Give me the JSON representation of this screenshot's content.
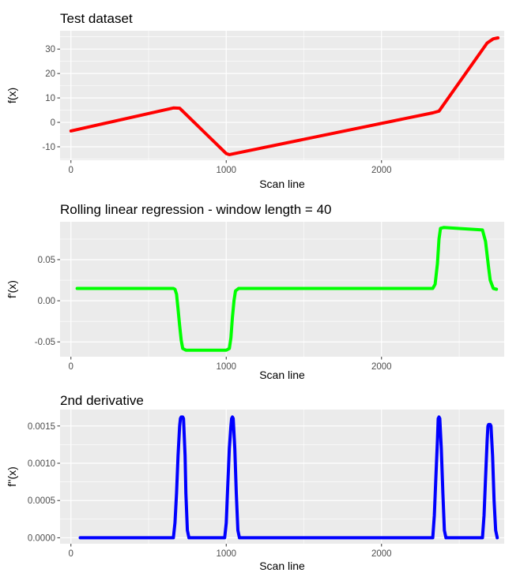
{
  "chart_data": [
    {
      "type": "line",
      "title": "Test dataset",
      "xlabel": "Scan line",
      "ylabel": "f(x)",
      "xlim": [
        -70,
        2790
      ],
      "ylim": [
        -15.5,
        37.5
      ],
      "xticks": [
        {
          "value": 0,
          "label": "0"
        },
        {
          "value": 1000,
          "label": "1000"
        },
        {
          "value": 2000,
          "label": "2000"
        }
      ],
      "yticks": [
        {
          "value": -10,
          "label": "-10"
        },
        {
          "value": 0,
          "label": "0"
        },
        {
          "value": 10,
          "label": "10"
        },
        {
          "value": 20,
          "label": "20"
        },
        {
          "value": 30,
          "label": "30"
        }
      ],
      "grid": true,
      "color": "#ff0000",
      "series": [
        {
          "x": [
            0,
            660,
            700,
            1000,
            1020,
            2330,
            2370,
            2680,
            2720,
            2750
          ],
          "values": [
            -3.5,
            5.9,
            5.8,
            -12.8,
            -13.2,
            3.9,
            4.6,
            32.5,
            34.2,
            34.6
          ]
        }
      ]
    },
    {
      "type": "line",
      "title": "Rolling linear regression - window length = 40",
      "xlabel": "Scan line",
      "ylabel": "f'(x)",
      "xlim": [
        -70,
        2790
      ],
      "ylim": [
        -0.068,
        0.096
      ],
      "xticks": [
        {
          "value": 0,
          "label": "0"
        },
        {
          "value": 1000,
          "label": "1000"
        },
        {
          "value": 2000,
          "label": "2000"
        }
      ],
      "yticks": [
        {
          "value": -0.05,
          "label": "-0.05"
        },
        {
          "value": 0,
          "label": "0.00"
        },
        {
          "value": 0.05,
          "label": "0.05"
        }
      ],
      "grid": true,
      "color": "#00ff00",
      "series": [
        {
          "x": [
            40,
            660,
            670,
            680,
            690,
            700,
            710,
            720,
            740,
            1000,
            1020,
            1030,
            1040,
            1050,
            1060,
            1080,
            2330,
            2345,
            2360,
            2370,
            2380,
            2400,
            2650,
            2670,
            2690,
            2700,
            2720,
            2740
          ],
          "values": [
            0.015,
            0.015,
            0.014,
            0.008,
            -0.01,
            -0.03,
            -0.048,
            -0.058,
            -0.06,
            -0.06,
            -0.058,
            -0.045,
            -0.02,
            0.0,
            0.012,
            0.015,
            0.015,
            0.02,
            0.045,
            0.075,
            0.088,
            0.089,
            0.086,
            0.072,
            0.04,
            0.025,
            0.015,
            0.014
          ]
        }
      ]
    },
    {
      "type": "line",
      "title": "2nd derivative",
      "xlabel": "Scan line",
      "ylabel": "f''(x)",
      "xlim": [
        -70,
        2790
      ],
      "ylim": [
        -8e-05,
        0.00172
      ],
      "xticks": [
        {
          "value": 0,
          "label": "0"
        },
        {
          "value": 1000,
          "label": "1000"
        },
        {
          "value": 2000,
          "label": "2000"
        }
      ],
      "yticks": [
        {
          "value": 0,
          "label": "0.0000"
        },
        {
          "value": 0.0005,
          "label": "0.0005"
        },
        {
          "value": 0.001,
          "label": "0.0010"
        },
        {
          "value": 0.0015,
          "label": "0.0015"
        }
      ],
      "grid": true,
      "color": "#0000ff",
      "series": [
        {
          "x": [
            60,
            660,
            670,
            680,
            690,
            700,
            705,
            710,
            720,
            725,
            735,
            740,
            750,
            760,
            990,
            1000,
            1010,
            1020,
            1030,
            1035,
            1040,
            1045,
            1055,
            1065,
            1075,
            1085,
            2330,
            2340,
            2350,
            2360,
            2365,
            2370,
            2375,
            2385,
            2395,
            2405,
            2415,
            2650,
            2660,
            2670,
            2680,
            2685,
            2690,
            2700,
            2705,
            2715,
            2725,
            2735,
            2745
          ],
          "values": [
            0,
            0,
            0.0002,
            0.0006,
            0.0011,
            0.0015,
            0.0016,
            0.00162,
            0.00162,
            0.0016,
            0.0011,
            0.0006,
            0.0001,
            0,
            0,
            0.0002,
            0.0007,
            0.0012,
            0.0015,
            0.0016,
            0.00162,
            0.0016,
            0.0012,
            0.0006,
            0.0001,
            0,
            0,
            0.0003,
            0.0008,
            0.0013,
            0.0016,
            0.00162,
            0.0016,
            0.0012,
            0.0006,
            0.0001,
            0,
            0,
            0.0003,
            0.0008,
            0.0013,
            0.0015,
            0.00152,
            0.00152,
            0.0015,
            0.0011,
            0.0005,
            0.0001,
            0
          ]
        }
      ]
    }
  ]
}
